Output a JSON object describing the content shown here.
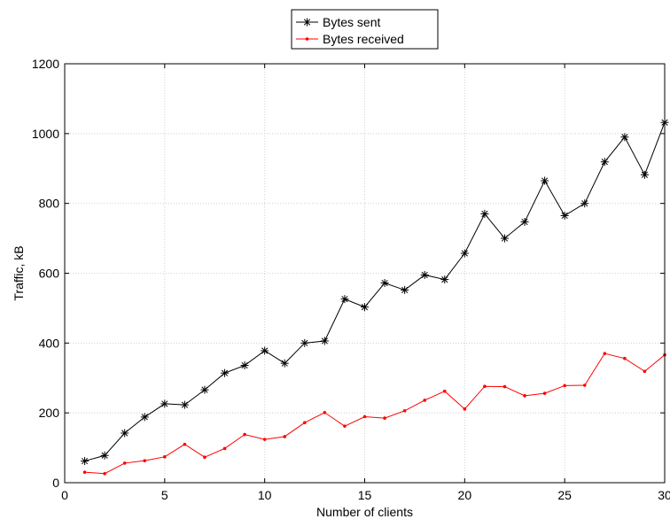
{
  "chart_data": {
    "type": "line",
    "title": "",
    "xlabel": "Number of clients",
    "ylabel": "Traffic, kB",
    "xlim": [
      0,
      30
    ],
    "ylim": [
      0,
      1200
    ],
    "xticks": [
      0,
      5,
      10,
      15,
      20,
      25,
      30
    ],
    "yticks": [
      0,
      200,
      400,
      600,
      800,
      1000,
      1200
    ],
    "grid": true,
    "legend_position": "top-center",
    "x": [
      1,
      2,
      3,
      4,
      5,
      6,
      7,
      8,
      9,
      10,
      11,
      12,
      13,
      14,
      15,
      16,
      17,
      18,
      19,
      20,
      21,
      22,
      23,
      24,
      25,
      26,
      27,
      28,
      29,
      30
    ],
    "series": [
      {
        "name": "Bytes sent",
        "color": "#000000",
        "marker": "star",
        "values": [
          62,
          78,
          142,
          188,
          226,
          223,
          266,
          314,
          336,
          378,
          342,
          400,
          406,
          526,
          503,
          572,
          552,
          595,
          582,
          657,
          770,
          700,
          747,
          865,
          765,
          800,
          919,
          990,
          882,
          1032
        ]
      },
      {
        "name": "Bytes received",
        "color": "#ff0000",
        "marker": "dot",
        "values": [
          30,
          26,
          56,
          63,
          74,
          110,
          73,
          98,
          138,
          124,
          132,
          172,
          201,
          162,
          189,
          185,
          206,
          236,
          262,
          211,
          276,
          275,
          249,
          256,
          278,
          279,
          370,
          356,
          319,
          366
        ]
      }
    ]
  }
}
